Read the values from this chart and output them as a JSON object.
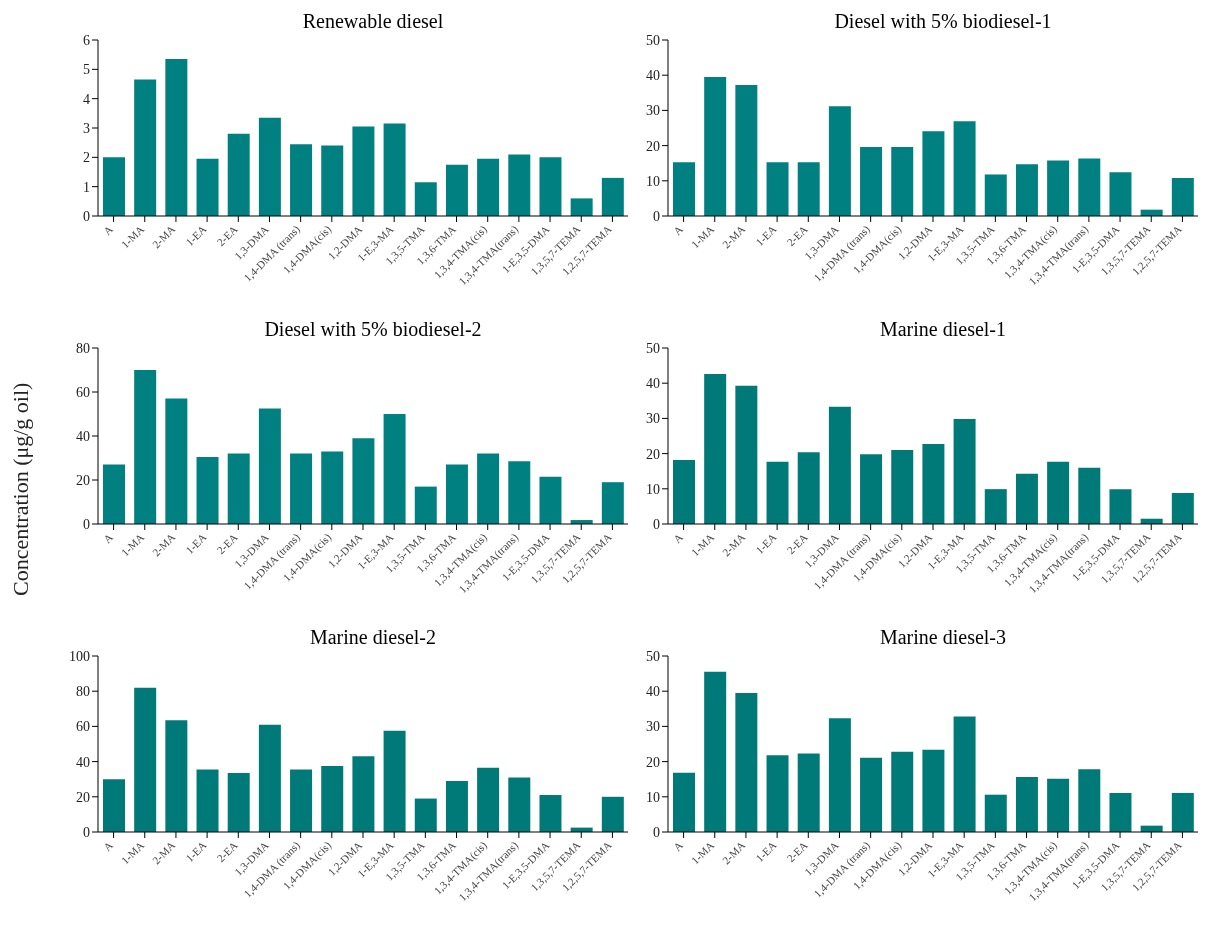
{
  "chart_data": [
    {
      "type": "bar",
      "title": "Renewable diesel",
      "categories": [
        "A",
        "1-MA",
        "2-MA",
        "1-EA",
        "2-EA",
        "1,3-DMA",
        "1,4-DMA (trans)",
        "1,4-DMA(cis)",
        "1,2-DMA",
        "1-E,3-MA",
        "1,3,5-TMA",
        "1,3,6-TMA",
        "1,3,4-TMA(cis)",
        "1,3,4-TMA(trans)",
        "1-E,3,5-DMA",
        "1,3,5,7-TEMA",
        "1,2,5,7-TEMA"
      ],
      "values": [
        2.0,
        4.65,
        5.35,
        1.95,
        2.8,
        3.35,
        2.45,
        2.4,
        3.05,
        3.15,
        1.15,
        1.75,
        1.95,
        2.1,
        2.0,
        0.6,
        1.3
      ],
      "color": "#008080",
      "ylim": [
        0,
        6
      ],
      "yticks": [
        0,
        1,
        2,
        3,
        4,
        5,
        6
      ]
    },
    {
      "type": "bar",
      "title": "Diesel with 5% biodiesel-1",
      "categories": [
        "A",
        "1-MA",
        "2-MA",
        "1-EA",
        "2-EA",
        "1,3-DMA",
        "1,4-DMA (trans)",
        "1,4-DMA(cis)",
        "1,2-DMA",
        "1-E,3-MA",
        "1,3,5-TMA",
        "1,3,6-TMA",
        "1,3,4-TMA(cis)",
        "1,3,4-TMA(trans)",
        "1-E,3,5-DMA",
        "1,3,5,7-TEMA",
        "1,2,5,7-TEMA"
      ],
      "values": [
        15.3,
        39.5,
        37.2,
        15.3,
        15.3,
        31.2,
        19.6,
        19.6,
        24.1,
        26.9,
        11.8,
        14.7,
        15.8,
        16.3,
        12.4,
        1.8,
        10.8
      ],
      "color": "#008080",
      "ylim": [
        0,
        50
      ],
      "yticks": [
        0,
        10,
        20,
        30,
        40,
        50
      ]
    },
    {
      "type": "bar",
      "title": "Diesel with 5% biodiesel-2",
      "ylabel": "Concentration (μg/g oil)",
      "categories": [
        "A",
        "1-MA",
        "2-MA",
        "1-EA",
        "2-EA",
        "1,3-DMA",
        "1,4-DMA (trans)",
        "1,4-DMA(cis)",
        "1,2-DMA",
        "1-E,3-MA",
        "1,3,5-TMA",
        "1,3,6-TMA",
        "1,3,4-TMA(cis)",
        "1,3,4-TMA(trans)",
        "1-E,3,5-DMA",
        "1,3,5,7-TEMA",
        "1,2,5,7-TEMA"
      ],
      "values": [
        27,
        70,
        57,
        30.5,
        32,
        52.5,
        32,
        33,
        39,
        50,
        17,
        27,
        32,
        28.5,
        21.5,
        1.8,
        19
      ],
      "color": "#008080",
      "ylim": [
        0,
        80
      ],
      "yticks": [
        0,
        20,
        40,
        60,
        80
      ]
    },
    {
      "type": "bar",
      "title": "Marine diesel-1",
      "categories": [
        "A",
        "1-MA",
        "2-MA",
        "1-EA",
        "2-EA",
        "1,3-DMA",
        "1,4-DMA (trans)",
        "1,4-DMA(cis)",
        "1,2-DMA",
        "1-E,3-MA",
        "1,3,5-TMA",
        "1,3,6-TMA",
        "1,3,4-TMA(cis)",
        "1,3,4-TMA(trans)",
        "1-E,3,5-DMA",
        "1,3,5,7-TEMA",
        "1,2,5,7-TEMA"
      ],
      "values": [
        18.2,
        42.6,
        39.3,
        17.7,
        20.4,
        33.3,
        19.8,
        21,
        22.7,
        29.8,
        9.9,
        14.3,
        17.7,
        16,
        9.9,
        1.5,
        8.8
      ],
      "color": "#007a78",
      "ylim": [
        0,
        50
      ],
      "yticks": [
        0,
        10,
        20,
        30,
        40,
        50
      ]
    },
    {
      "type": "bar",
      "title": "Marine diesel-2",
      "categories": [
        "A",
        "1-MA",
        "2-MA",
        "1-EA",
        "2-EA",
        "1,3-DMA",
        "1,4-DMA (trans)",
        "1,4-DMA(cis)",
        "1,2-DMA",
        "1-E,3-MA",
        "1,3,5-TMA",
        "1,3,6-TMA",
        "1,3,4-TMA(cis)",
        "1,3,4-TMA(trans)",
        "1-E,3,5-DMA",
        "1,3,5,7-TEMA",
        "1,2,5,7-TEMA"
      ],
      "values": [
        30,
        82,
        63.5,
        35.5,
        33.5,
        61,
        35.5,
        37.5,
        43,
        57.5,
        19,
        29,
        36.5,
        31,
        21,
        2.5,
        20
      ],
      "color": "#007a78",
      "ylim": [
        0,
        100
      ],
      "yticks": [
        0,
        20,
        40,
        60,
        80,
        100
      ]
    },
    {
      "type": "bar",
      "title": "Marine diesel-3",
      "categories": [
        "A",
        "1-MA",
        "2-MA",
        "1-EA",
        "2-EA",
        "1,3-DMA",
        "1,4-DMA (trans)",
        "1,4-DMA(cis)",
        "1,2-DMA",
        "1-E,3-MA",
        "1,3,5-TMA",
        "1,3,6-TMA",
        "1,3,4-TMA(cis)",
        "1,3,4-TMA(trans)",
        "1-E,3,5-DMA",
        "1,3,5,7-TEMA",
        "1,2,5,7-TEMA"
      ],
      "values": [
        16.8,
        45.5,
        39.5,
        21.8,
        22.3,
        32.3,
        21.1,
        22.8,
        23.4,
        32.8,
        10.6,
        15.6,
        15.1,
        17.8,
        11.1,
        1.8,
        11.1
      ],
      "color": "#007a78",
      "ylim": [
        0,
        50
      ],
      "yticks": [
        0,
        10,
        20,
        30,
        40,
        50
      ]
    }
  ]
}
